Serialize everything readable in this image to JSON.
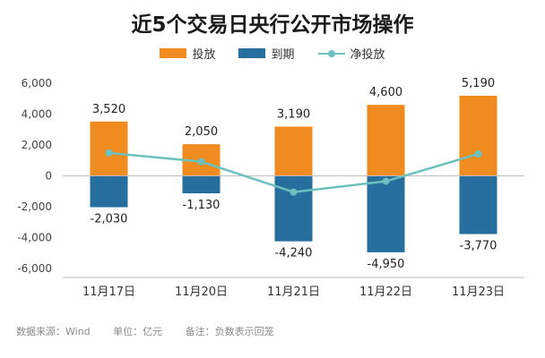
{
  "title": "近5个交易日央行公开市场操作",
  "footer": {
    "source": "数据来源：Wind",
    "unit": "单位：亿元",
    "note": "备注：负数表示回笼"
  },
  "colors": {
    "injection": "#f08b1f",
    "maturity": "#256e9e",
    "net": "#6cc0be",
    "axis": "#bfbfbf"
  },
  "chart_data": {
    "type": "bar",
    "title": "近5个交易日央行公开市场操作",
    "categories": [
      "11月17日",
      "11月20日",
      "11月21日",
      "11月22日",
      "11月23日"
    ],
    "series": [
      {
        "name": "投放",
        "type": "bar",
        "values": [
          3520,
          2050,
          3190,
          4600,
          5190
        ]
      },
      {
        "name": "到期",
        "type": "bar",
        "values": [
          -2030,
          -1130,
          -4240,
          -4950,
          -3770
        ]
      },
      {
        "name": "净投放",
        "type": "line",
        "values": [
          1490,
          920,
          -1050,
          -350,
          1420
        ]
      }
    ],
    "bar_labels": {
      "投放": [
        "3,520",
        "2,050",
        "3,190",
        "4,600",
        "5,190"
      ],
      "到期": [
        "-2,030",
        "-1,130",
        "-4,240",
        "-4,950",
        "-3,770"
      ]
    },
    "y_ticks": [
      "6,000",
      "4,000",
      "2,000",
      "0",
      "-2,000",
      "-4,000",
      "-6,000"
    ],
    "y_tick_values": [
      6000,
      4000,
      2000,
      0,
      -2000,
      -4000,
      -6000
    ],
    "ylim": [
      -6000,
      6000
    ],
    "legend_position": "top-center",
    "grid": false
  }
}
